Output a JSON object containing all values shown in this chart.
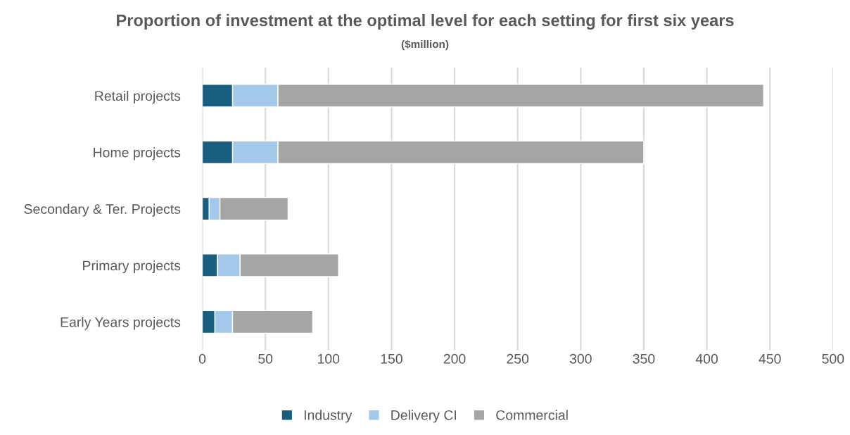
{
  "chart_data": {
    "type": "bar",
    "orientation": "horizontal",
    "stacked": true,
    "title": "Proportion of investment at the optimal level for each setting for first six years",
    "subtitle": "($million)",
    "categories": [
      "Retail projects",
      "Home projects",
      "Secondary & Ter. Projects",
      "Primary projects",
      "Early Years projects"
    ],
    "series": [
      {
        "name": "Industry",
        "color": "#1a5e7f",
        "values": [
          24,
          24,
          5.5,
          12,
          10
        ]
      },
      {
        "name": "Delivery CI",
        "color": "#a3c8e9",
        "values": [
          36,
          36,
          8.5,
          18,
          14
        ]
      },
      {
        "name": "Commercial",
        "color": "#a5a5a5",
        "values": [
          385,
          290,
          54,
          78,
          63.5
        ]
      }
    ],
    "xlim": [
      0,
      500
    ],
    "xticks": [
      0,
      50,
      100,
      150,
      200,
      250,
      300,
      350,
      400,
      450,
      500
    ],
    "grid": "x",
    "legend": "bottom"
  }
}
